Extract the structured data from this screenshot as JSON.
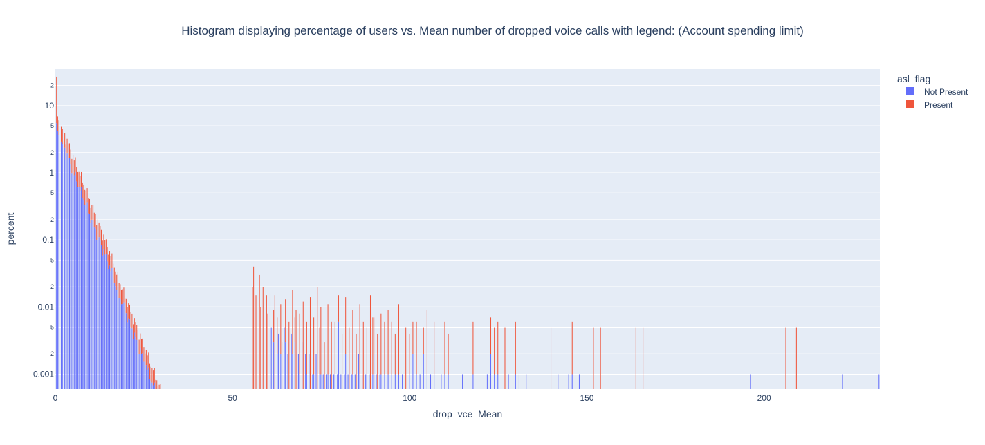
{
  "chart_data": {
    "type": "bar",
    "barmode": "stack",
    "title": "Histogram displaying percentage of users vs. Mean number of dropped voice calls with legend: (Account spending limit)",
    "xlabel": "drop_vce_Mean",
    "ylabel": "percent",
    "xlim": [
      0,
      232.67
    ],
    "ylim": [
      0.0006,
      35
    ],
    "yscale": "log",
    "x_ticks": [
      0,
      50,
      100,
      150,
      200
    ],
    "y_major_ticks": [
      {
        "value": 10,
        "label": "10"
      },
      {
        "value": 1,
        "label": "1"
      },
      {
        "value": 0.1,
        "label": "0.1"
      },
      {
        "value": 0.01,
        "label": "0.01"
      },
      {
        "value": 0.001,
        "label": "0.001"
      }
    ],
    "y_minor_ticks": [
      {
        "value": 20,
        "label": "2"
      },
      {
        "value": 5,
        "label": "5"
      },
      {
        "value": 2,
        "label": "2"
      },
      {
        "value": 0.5,
        "label": "5"
      },
      {
        "value": 0.2,
        "label": "2"
      },
      {
        "value": 0.05,
        "label": "5"
      },
      {
        "value": 0.02,
        "label": "2"
      },
      {
        "value": 0.005,
        "label": "5"
      },
      {
        "value": 0.002,
        "label": "2"
      }
    ],
    "bin_width": 0.333,
    "legend": {
      "title": "asl_flag",
      "placement": "top-right outside"
    },
    "series": [
      {
        "name": "Not Present",
        "color": "#636efa",
        "decay": {
          "start": 5.0,
          "scale": 7.2,
          "until": 60
        },
        "sparse_points": [
          [
            60.5,
            0.004
          ],
          [
            61,
            0.005
          ],
          [
            61.7,
            0.003
          ],
          [
            62.5,
            0.002
          ],
          [
            63,
            0.004
          ],
          [
            63.7,
            0.002
          ],
          [
            64.5,
            0.005
          ],
          [
            65,
            0.003
          ],
          [
            65.7,
            0.002
          ],
          [
            66.5,
            0.004
          ],
          [
            67,
            0.002
          ],
          [
            67.7,
            0.003
          ],
          [
            68.5,
            0.002
          ],
          [
            69,
            0.001
          ],
          [
            69.7,
            0.003
          ],
          [
            70.5,
            0.002
          ],
          [
            71,
            0.001
          ],
          [
            71.7,
            0.002
          ],
          [
            72.5,
            0.001
          ],
          [
            73,
            0.001
          ],
          [
            73.7,
            0.002
          ],
          [
            74.5,
            0.001
          ],
          [
            75,
            0.001
          ],
          [
            75.7,
            0.001
          ],
          [
            76.5,
            0.001
          ],
          [
            77,
            0.001
          ],
          [
            77.7,
            0.001
          ],
          [
            78.5,
            0.001
          ],
          [
            79,
            0.001
          ],
          [
            79.7,
            0.001
          ],
          [
            80,
            0.006
          ],
          [
            80.7,
            0.001
          ],
          [
            81.5,
            0.001
          ],
          [
            82,
            0.002
          ],
          [
            82.7,
            0.001
          ],
          [
            83.5,
            0.001
          ],
          [
            84,
            0.001
          ],
          [
            84.7,
            0.001
          ],
          [
            85.5,
            0.002
          ],
          [
            86,
            0.001
          ],
          [
            86.7,
            0.001
          ],
          [
            87.5,
            0.001
          ],
          [
            88,
            0.001
          ],
          [
            88.7,
            0.001
          ],
          [
            89.5,
            0.001
          ],
          [
            90,
            0.002
          ],
          [
            90.7,
            0.001
          ],
          [
            91.5,
            0.001
          ],
          [
            92,
            0.001
          ],
          [
            93,
            0.001
          ],
          [
            94,
            0.001
          ],
          [
            95,
            0.001
          ],
          [
            96,
            0.001
          ],
          [
            97,
            0.001
          ],
          [
            98,
            0.001
          ],
          [
            100,
            0.001
          ],
          [
            101,
            0.002
          ],
          [
            102,
            0.001
          ],
          [
            103,
            0.001
          ],
          [
            104,
            0.002
          ],
          [
            105,
            0.001
          ],
          [
            106,
            0.001
          ],
          [
            107,
            0.001
          ],
          [
            109,
            0.001
          ],
          [
            110,
            0.001
          ],
          [
            111,
            0.001
          ],
          [
            115,
            0.001
          ],
          [
            118,
            0.001
          ],
          [
            122,
            0.001
          ],
          [
            123,
            0.002
          ],
          [
            124,
            0.001
          ],
          [
            125,
            0.001
          ],
          [
            128,
            0.001
          ],
          [
            130,
            0.001
          ],
          [
            131,
            0.001
          ],
          [
            133,
            0.001
          ],
          [
            142,
            0.001
          ],
          [
            145,
            0.001
          ],
          [
            145.5,
            0.001
          ],
          [
            146,
            0.001
          ],
          [
            148,
            0.001
          ],
          [
            196,
            0.001
          ],
          [
            222,
            0.001
          ],
          [
            232.5,
            0.001
          ]
        ]
      },
      {
        "name": "Present",
        "color": "#ef553b",
        "decay": {
          "start": 3.3,
          "scale": 7.2,
          "until": 55
        },
        "first_bin_top": 27,
        "sparse_points": [
          [
            55.5,
            0.02
          ],
          [
            56,
            0.04
          ],
          [
            56.7,
            0.015
          ],
          [
            57.5,
            0.03
          ],
          [
            58,
            0.01
          ],
          [
            58.7,
            0.02
          ],
          [
            59.5,
            0.015
          ],
          [
            60,
            0.008
          ],
          [
            60.7,
            0.012
          ],
          [
            61.5,
            0.006
          ],
          [
            62,
            0.015
          ],
          [
            62.7,
            0.005
          ],
          [
            63.5,
            0.009
          ],
          [
            64,
            0.003
          ],
          [
            65,
            0.01
          ],
          [
            66,
            0.006
          ],
          [
            67,
            0.016
          ],
          [
            67.5,
            0.004
          ],
          [
            68,
            0.009
          ],
          [
            69,
            0.007
          ],
          [
            70,
            0.012
          ],
          [
            71,
            0.005
          ],
          [
            72,
            0.014
          ],
          [
            73,
            0.006
          ],
          [
            74,
            0.02
          ],
          [
            74.5,
            0.004
          ],
          [
            75,
            0.009
          ],
          [
            76,
            0.003
          ],
          [
            77,
            0.01
          ],
          [
            78,
            0.006
          ],
          [
            79,
            0.005
          ],
          [
            80,
            0.009
          ],
          [
            81,
            0.004
          ],
          [
            82,
            0.012
          ],
          [
            83,
            0.005
          ],
          [
            84,
            0.008
          ],
          [
            85,
            0.004
          ],
          [
            86,
            0.01
          ],
          [
            87,
            0.006
          ],
          [
            88,
            0.004
          ],
          [
            89,
            0.015
          ],
          [
            89.5,
            0.006
          ],
          [
            90,
            0.005
          ],
          [
            91,
            0.004
          ],
          [
            92,
            0.007
          ],
          [
            93,
            0.005
          ],
          [
            94,
            0.008
          ],
          [
            95,
            0.005
          ],
          [
            96,
            0.003
          ],
          [
            97,
            0.01
          ],
          [
            99,
            0.005
          ],
          [
            100,
            0.003
          ],
          [
            101,
            0.004
          ],
          [
            102,
            0.005
          ],
          [
            104,
            0.003
          ],
          [
            105,
            0.008
          ],
          [
            107,
            0.005
          ],
          [
            110,
            0.005
          ],
          [
            111,
            0.003
          ],
          [
            118,
            0.005
          ],
          [
            123,
            0.005
          ],
          [
            124,
            0.004
          ],
          [
            125,
            0.005
          ],
          [
            127,
            0.005
          ],
          [
            130,
            0.005
          ],
          [
            140,
            0.005
          ],
          [
            146,
            0.005
          ],
          [
            152,
            0.005
          ],
          [
            154,
            0.005
          ],
          [
            164,
            0.005
          ],
          [
            166,
            0.005
          ],
          [
            206,
            0.005
          ],
          [
            209,
            0.005
          ]
        ]
      }
    ]
  }
}
